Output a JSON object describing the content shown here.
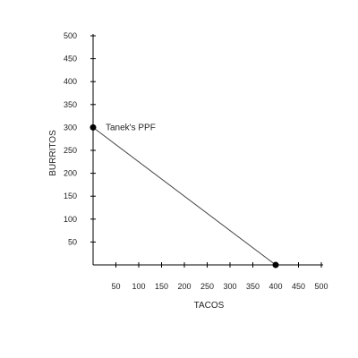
{
  "chart_data": {
    "type": "line",
    "title": "",
    "xlabel": "TACOS",
    "ylabel": "BURRITOS",
    "xlim": [
      0,
      500
    ],
    "ylim": [
      0,
      500
    ],
    "xticks": [
      50,
      100,
      150,
      200,
      250,
      300,
      350,
      400,
      450,
      500
    ],
    "yticks": [
      50,
      100,
      150,
      200,
      250,
      300,
      350,
      400,
      450,
      500
    ],
    "grid": false,
    "series": [
      {
        "name": "Tanek's PPF",
        "x": [
          0,
          400
        ],
        "y": [
          300,
          0
        ],
        "markers": true
      }
    ],
    "annotations": [
      {
        "text": "Tanek's PPF",
        "x": 0,
        "y": 300
      }
    ],
    "colors": {
      "line": "#444444",
      "marker": "#000000",
      "axis": "#000000"
    }
  }
}
